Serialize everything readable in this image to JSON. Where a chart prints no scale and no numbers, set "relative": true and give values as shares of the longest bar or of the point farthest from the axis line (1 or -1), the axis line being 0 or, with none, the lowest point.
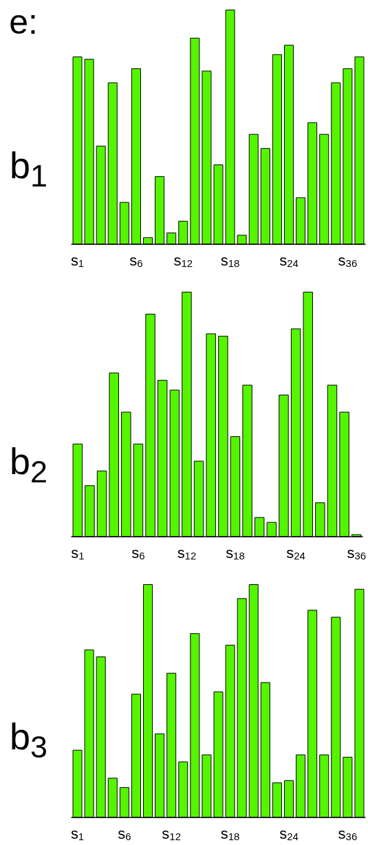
{
  "chart_data": [
    {
      "type": "bar",
      "title": "b$_{1}$",
      "relative": true,
      "color": "#55f500",
      "annotations": [
        "e:"
      ],
      "categories": [
        "s$_{1}$",
        null,
        null,
        null,
        null,
        "s$_{6}$",
        null,
        null,
        null,
        "s$_{12}$",
        null,
        null,
        null,
        "s$_{18}$",
        null,
        null,
        null,
        null,
        "s$_{24}$",
        null,
        null,
        null,
        null,
        "s$_{36}$",
        null
      ],
      "values": [
        0.8,
        0.79,
        0.42,
        0.69,
        0.18,
        0.75,
        0.03,
        0.29,
        0.05,
        0.1,
        0.88,
        0.74,
        0.34,
        1.0,
        0.04,
        0.47,
        0.41,
        0.81,
        0.85,
        0.2,
        0.52,
        0.47,
        0.69,
        0.75,
        0.8
      ]
    },
    {
      "type": "bar",
      "title": "b$_{2}$",
      "relative": true,
      "color": "#55f500",
      "categories": [
        "s$_{1}$",
        null,
        null,
        null,
        null,
        "s$_{6}$",
        null,
        null,
        null,
        "s$_{12}$",
        null,
        null,
        null,
        "s$_{18}$",
        null,
        null,
        null,
        null,
        "s$_{24}$",
        null,
        null,
        null,
        null,
        "s$_{36}$"
      ],
      "values": [
        0.38,
        0.21,
        0.27,
        0.67,
        0.51,
        0.38,
        0.91,
        0.64,
        0.6,
        1.0,
        0.31,
        0.83,
        0.82,
        0.41,
        0.62,
        0.08,
        0.06,
        0.58,
        0.85,
        1.0,
        0.14,
        0.62,
        0.51,
        0.01
      ]
    },
    {
      "type": "bar",
      "title": "b$_{3}$",
      "relative": true,
      "color": "#55f500",
      "categories": [
        "s$_{1}$",
        null,
        null,
        null,
        "s$_{6}$",
        null,
        null,
        null,
        "s$_{12}$",
        null,
        null,
        null,
        null,
        "s$_{18}$",
        null,
        null,
        null,
        null,
        "s$_{24}$",
        null,
        null,
        null,
        null,
        "s$_{36}$",
        null
      ],
      "values": [
        0.29,
        0.72,
        0.69,
        0.17,
        0.13,
        0.53,
        1.0,
        0.36,
        0.62,
        0.24,
        0.79,
        0.27,
        0.54,
        0.74,
        0.94,
        1.0,
        0.58,
        0.15,
        0.16,
        0.27,
        0.89,
        0.27,
        0.86,
        0.26,
        0.98
      ]
    }
  ]
}
